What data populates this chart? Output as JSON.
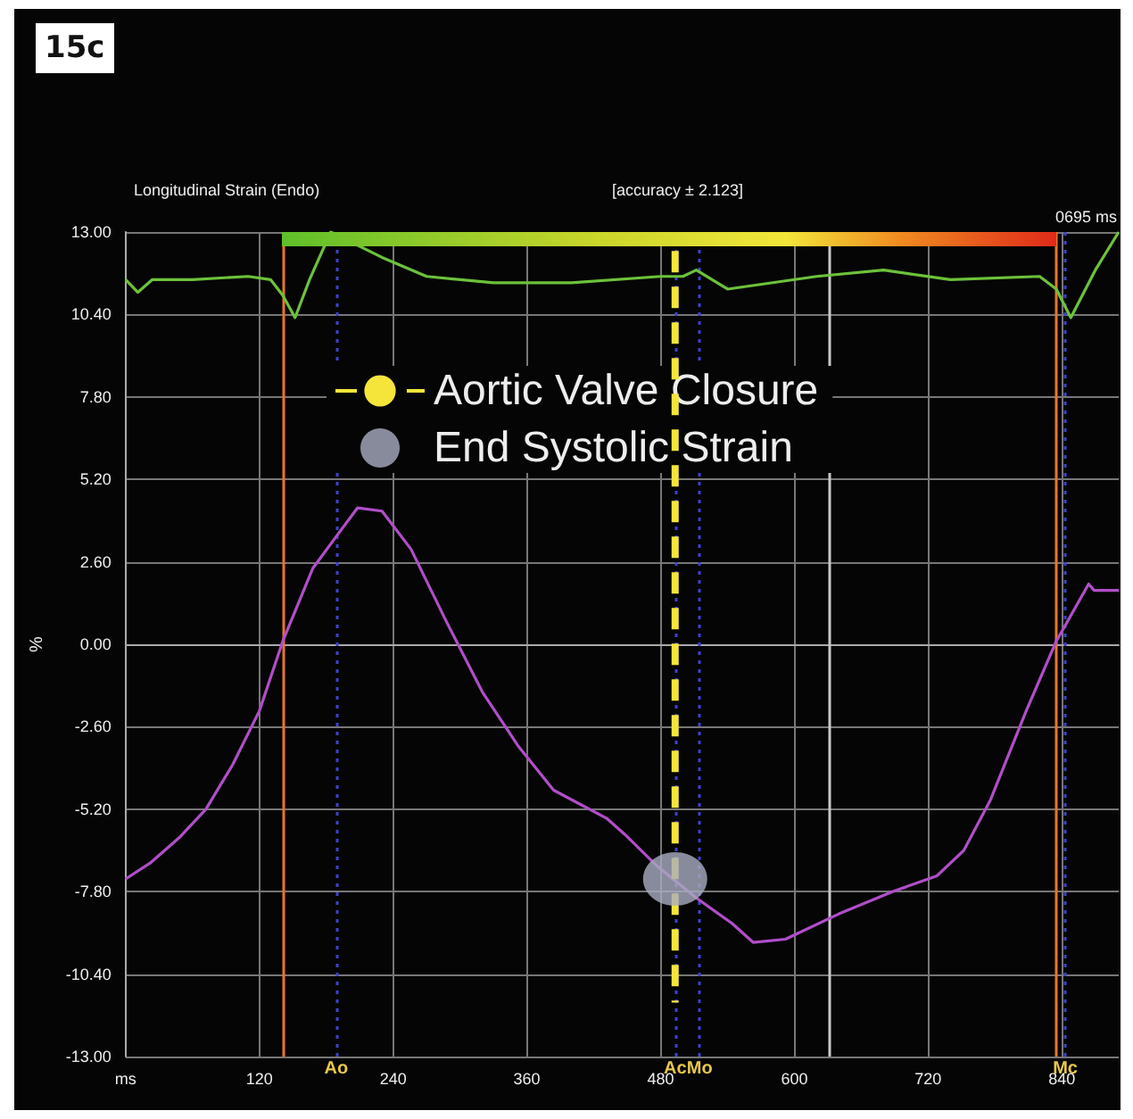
{
  "chart_data": {
    "type": "line",
    "title": "Longitudinal Strain (Endo)",
    "subtitle": "[accuracy ± 2.123]",
    "ylabel": "%",
    "annotations": [
      "15c",
      "0695 ms"
    ],
    "xlim": [
      0,
      891
    ],
    "xticks": [
      {
        "value": 0,
        "label": "ms"
      },
      120,
      240,
      360,
      480,
      600,
      720,
      840
    ],
    "ylim": [
      -13,
      13
    ],
    "yticks": [
      {
        "value": -13,
        "label": "-13.00"
      },
      {
        "value": -10.4,
        "label": "-10.40"
      },
      {
        "value": -7.8,
        "label": "-7.80"
      },
      {
        "value": -5.2,
        "label": "-5.20"
      },
      {
        "value": -2.6,
        "label": "-2.60"
      },
      {
        "value": 0,
        "label": "0.00"
      },
      {
        "value": 2.6,
        "label": "2.60"
      },
      {
        "value": 5.2,
        "label": "5.20"
      },
      {
        "value": 7.8,
        "label": "7.80"
      },
      {
        "value": 10.4,
        "label": "10.40"
      },
      {
        "value": 13,
        "label": "13.00"
      }
    ],
    "grid": true,
    "legend": "top",
    "marker": "none",
    "line_style": "solid",
    "series": [
      {
        "color": "#b04ec8",
        "x": [
          0,
          22,
          48,
          72,
          96,
          120,
          141,
          168,
          189,
          208,
          230,
          256,
          288,
          320,
          352,
          384,
          432,
          448,
          477,
          512,
          544,
          563,
          592,
          640,
          688,
          728,
          752,
          776,
          808,
          835,
          864,
          869,
          891
        ],
        "values": [
          -7.4,
          -6.9,
          -6.1,
          -5.2,
          -3.8,
          -2.1,
          0.1,
          2.4,
          3.4,
          4.3,
          4.2,
          3.0,
          0.7,
          -1.5,
          -3.2,
          -4.6,
          -5.5,
          -6.0,
          -7.0,
          -8.0,
          -8.8,
          -9.4,
          -9.3,
          -8.5,
          -7.8,
          -7.3,
          -6.5,
          -4.9,
          -2.1,
          0.1,
          1.9,
          1.7,
          1.7
        ]
      },
      {
        "color": "#6cc23a",
        "x": [
          0,
          11,
          24,
          60,
          110,
          130,
          141,
          152,
          165,
          184,
          230,
          270,
          330,
          400,
          480,
          500,
          512,
          540,
          620,
          680,
          740,
          820,
          835,
          848,
          870,
          891
        ],
        "values": [
          11.5,
          11.1,
          11.5,
          11.5,
          11.6,
          11.5,
          11.0,
          10.3,
          11.5,
          13.0,
          12.2,
          11.6,
          11.4,
          11.4,
          11.6,
          11.6,
          11.8,
          11.2,
          11.6,
          11.8,
          11.5,
          11.6,
          11.2,
          10.3,
          11.8,
          13.0
        ]
      },
      {
        "name": "Aortic Valve Closure",
        "color": "#f5e53a",
        "line_style": "dashed",
        "x": [
          493,
          493
        ],
        "values": [
          12.4,
          -11.3
        ]
      },
      {
        "name": "End Systolic Strain",
        "type": "scatter",
        "marker": "circle",
        "color": "#a9adc0",
        "x": [
          493
        ],
        "values": [
          -7.4
        ]
      }
    ],
    "ref_lines": [
      {
        "axis": "x",
        "value": 141,
        "color": "#e8762b",
        "line_style": "solid"
      },
      {
        "axis": "x",
        "value": 835,
        "color": "#e8762b",
        "line_style": "solid"
      },
      {
        "axis": "x",
        "value": 632,
        "color": "#c8c8c8",
        "line_style": "solid"
      },
      {
        "axis": "x",
        "value": 189,
        "label": "Ao",
        "color": "#4040d0",
        "line_style": "dotted"
      },
      {
        "axis": "x",
        "value": 493,
        "label": "Ac",
        "color": "#4040d0",
        "line_style": "dotted"
      },
      {
        "axis": "x",
        "value": 515,
        "label": "Mo",
        "color": "#4040d0",
        "line_style": "dotted"
      },
      {
        "axis": "x",
        "value": 843,
        "label": "Mc",
        "color": "#4040d0",
        "line_style": "dotted"
      }
    ]
  }
}
